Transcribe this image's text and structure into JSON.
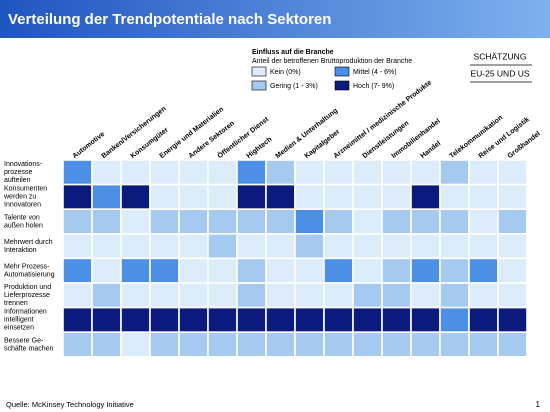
{
  "header": {
    "title": "Verteilung der Trendpotentiale nach Sektoren"
  },
  "legend": {
    "title": "Einfluss auf die Branche",
    "subtitle": "Anteil der betroffenen Bruttoproduktion der Branche",
    "items": [
      {
        "label": "Kein (0%)",
        "color": "#dcecfa"
      },
      {
        "label": "Gering (1 - 3%)",
        "color": "#a6c9f0"
      },
      {
        "label": "Mittel (4 - 6%)",
        "color": "#4b8fe6"
      },
      {
        "label": "Hoch (7- 9%)",
        "color": "#0b1a7c"
      }
    ]
  },
  "badges": [
    "SCHÄTZUNG",
    "EU-25 UND US"
  ],
  "columns": [
    "Automotive",
    "Banken/Versicherungen",
    "Konsumgüter",
    "Energie und Materialien",
    "Andere Sektoren",
    "Öffentlicher Dienst",
    "Hightech",
    "Medien & Unterhaltung",
    "Kapitalgeber",
    "Arzneimittel / medizinische Produkte",
    "Dienstleistungen",
    "Immobilienhandel",
    "Handel",
    "Telekommunikation",
    "Reise und Logistik",
    "Großhandel"
  ],
  "rows": [
    {
      "label": [
        "Innovations-",
        "prozesse",
        "aufteilen"
      ],
      "levels": [
        2,
        0,
        0,
        0,
        0,
        0,
        2,
        1,
        0,
        0,
        0,
        0,
        0,
        1,
        0,
        0
      ]
    },
    {
      "label": [
        "Konsumenten",
        "werden zu",
        "Innovatoren"
      ],
      "levels": [
        3,
        2,
        3,
        0,
        0,
        0,
        3,
        3,
        0,
        0,
        0,
        0,
        3,
        0,
        0,
        0
      ]
    },
    {
      "label": [
        "Talente von",
        "außen holen"
      ],
      "levels": [
        1,
        1,
        0,
        1,
        1,
        1,
        1,
        1,
        2,
        1,
        0,
        1,
        1,
        1,
        0,
        1
      ]
    },
    {
      "label": [
        "Mehrwert durch",
        "Interaktion"
      ],
      "levels": [
        0,
        0,
        0,
        0,
        0,
        1,
        0,
        0,
        1,
        0,
        0,
        0,
        0,
        0,
        0,
        0
      ]
    },
    {
      "label": [
        "Mehr Prozess-",
        "Automatisierung"
      ],
      "levels": [
        2,
        0,
        2,
        2,
        0,
        0,
        1,
        0,
        0,
        2,
        0,
        1,
        2,
        1,
        2,
        0
      ]
    },
    {
      "label": [
        "Produktion und",
        "Lieferprozesse",
        "trennen"
      ],
      "levels": [
        0,
        1,
        0,
        0,
        0,
        0,
        1,
        0,
        0,
        0,
        1,
        1,
        0,
        1,
        0,
        0
      ]
    },
    {
      "label": [
        "Informationen",
        "intelligent",
        "einsetzen"
      ],
      "levels": [
        3,
        3,
        3,
        3,
        3,
        3,
        3,
        3,
        3,
        3,
        3,
        3,
        3,
        2,
        3,
        3
      ]
    },
    {
      "label": [
        "Bessere Ge-",
        "schäfte machen"
      ],
      "levels": [
        1,
        1,
        0,
        1,
        1,
        1,
        1,
        1,
        1,
        1,
        1,
        1,
        1,
        1,
        1,
        1
      ]
    }
  ],
  "footer": {
    "source": "Quelle: McKinsey Technology Initiative",
    "page": "1"
  }
}
